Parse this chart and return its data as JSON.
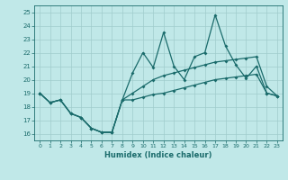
{
  "xlabel": "Humidex (Indice chaleur)",
  "bg_color": "#c0e8e8",
  "grid_color": "#a0cccc",
  "line_color": "#1a6b6b",
  "xlim": [
    -0.5,
    23.5
  ],
  "ylim": [
    15.5,
    25.5
  ],
  "xticks": [
    0,
    1,
    2,
    3,
    4,
    5,
    6,
    7,
    8,
    9,
    10,
    11,
    12,
    13,
    14,
    15,
    16,
    17,
    18,
    19,
    20,
    21,
    22,
    23
  ],
  "yticks": [
    16,
    17,
    18,
    19,
    20,
    21,
    22,
    23,
    24,
    25
  ],
  "series_low": [
    19.0,
    18.3,
    18.5,
    17.5,
    17.2,
    16.4,
    16.1,
    16.1,
    18.5,
    18.5,
    18.7,
    18.9,
    19.0,
    19.2,
    19.4,
    19.6,
    19.8,
    20.0,
    20.1,
    20.2,
    20.3,
    20.4,
    19.0,
    18.8
  ],
  "series_mid": [
    19.0,
    18.3,
    18.5,
    17.5,
    17.2,
    16.4,
    16.1,
    16.1,
    18.5,
    20.5,
    22.0,
    20.9,
    23.5,
    21.0,
    20.0,
    21.7,
    22.0,
    24.8,
    22.5,
    21.1,
    20.1,
    21.0,
    19.0,
    18.8
  ],
  "series_high": [
    19.0,
    18.3,
    18.5,
    17.5,
    17.2,
    16.4,
    16.1,
    16.1,
    18.5,
    19.0,
    19.5,
    20.0,
    20.3,
    20.5,
    20.7,
    20.9,
    21.1,
    21.3,
    21.4,
    21.5,
    21.6,
    21.7,
    19.5,
    18.8
  ]
}
